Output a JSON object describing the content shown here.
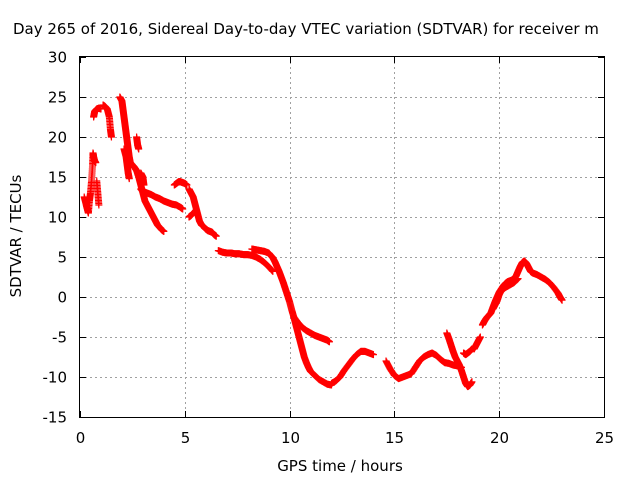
{
  "chart_data": {
    "type": "scatter",
    "title": "Day 265 of 2016, Sidereal Day-to-day VTEC variation (SDTVAR) for receiver m",
    "xlabel": "GPS time / hours",
    "ylabel": "SDTVAR / TECUs",
    "xlim": [
      0,
      25
    ],
    "ylim": [
      -15,
      30
    ],
    "xticks": [
      0,
      5,
      10,
      15,
      20,
      25
    ],
    "yticks": [
      -15,
      -10,
      -5,
      0,
      5,
      10,
      15,
      20,
      25,
      30
    ],
    "grid": true,
    "marker": "+",
    "color": "#ff0000",
    "series": [
      {
        "name": "SDTVAR",
        "segments": [
          [
            [
              0.2,
              12.5
            ],
            [
              0.3,
              11.5
            ],
            [
              0.35,
              11
            ],
            [
              0.4,
              10.5
            ],
            [
              0.45,
              12
            ],
            [
              0.5,
              13
            ],
            [
              0.55,
              14.5
            ],
            [
              0.6,
              16.5
            ],
            [
              0.62,
              18
            ],
            [
              0.65,
              17.5
            ],
            [
              0.7,
              17
            ],
            [
              0.75,
              16.8
            ]
          ],
          [
            [
              0.65,
              22.5
            ],
            [
              0.7,
              23.2
            ],
            [
              0.8,
              23.5
            ],
            [
              0.9,
              23.6
            ],
            [
              1.0,
              23.5
            ]
          ],
          [
            [
              0.8,
              14.5
            ],
            [
              0.85,
              13
            ],
            [
              0.9,
              11.5
            ]
          ],
          [
            [
              1.1,
              24
            ],
            [
              1.2,
              23.8
            ],
            [
              1.3,
              23.5
            ],
            [
              1.4,
              22.5
            ],
            [
              1.45,
              21
            ],
            [
              1.5,
              20
            ]
          ],
          [
            [
              1.9,
              25
            ],
            [
              2.0,
              24.5
            ],
            [
              2.05,
              23.5
            ],
            [
              2.1,
              22.5
            ],
            [
              2.15,
              21.5
            ],
            [
              2.2,
              20.5
            ],
            [
              2.25,
              19.5
            ],
            [
              2.3,
              18.5
            ],
            [
              2.35,
              17.5
            ],
            [
              2.4,
              16.8
            ],
            [
              2.5,
              16.5
            ],
            [
              2.6,
              16.2
            ],
            [
              2.7,
              15.8
            ],
            [
              2.8,
              15
            ],
            [
              2.9,
              14
            ],
            [
              3.0,
              13
            ],
            [
              3.1,
              12
            ],
            [
              3.2,
              11.5
            ],
            [
              3.3,
              11
            ],
            [
              3.4,
              10.5
            ],
            [
              3.5,
              10
            ],
            [
              3.6,
              9.5
            ],
            [
              3.7,
              9
            ],
            [
              3.8,
              8.7
            ],
            [
              3.9,
              8.4
            ],
            [
              4.0,
              8.2
            ]
          ],
          [
            [
              2.1,
              18.5
            ],
            [
              2.2,
              17.5
            ],
            [
              2.25,
              16.5
            ],
            [
              2.3,
              15.5
            ],
            [
              2.35,
              14.8
            ]
          ],
          [
            [
              2.7,
              20
            ],
            [
              2.75,
              19
            ],
            [
              2.8,
              18.5
            ]
          ],
          [
            [
              2.9,
              15.5
            ],
            [
              3.0,
              15
            ],
            [
              3.05,
              14
            ]
          ],
          [
            [
              2.9,
              13.5
            ],
            [
              3.0,
              13.2
            ],
            [
              3.2,
              13
            ],
            [
              3.4,
              12.8
            ],
            [
              3.6,
              12.5
            ],
            [
              3.8,
              12.3
            ],
            [
              4.0,
              12
            ],
            [
              4.2,
              11.8
            ],
            [
              4.4,
              11.6
            ],
            [
              4.6,
              11.5
            ],
            [
              4.8,
              11.2
            ],
            [
              4.9,
              11.0
            ]
          ],
          [
            [
              4.5,
              14
            ],
            [
              4.6,
              14.2
            ],
            [
              4.7,
              14.4
            ],
            [
              4.8,
              14.4
            ],
            [
              4.9,
              14.3
            ],
            [
              5.0,
              14.2
            ],
            [
              5.1,
              14
            ]
          ],
          [
            [
              5.2,
              13.5
            ],
            [
              5.3,
              13
            ],
            [
              5.4,
              12.5
            ],
            [
              5.5,
              11.5
            ],
            [
              5.6,
              10.5
            ],
            [
              5.7,
              9.5
            ],
            [
              5.8,
              9
            ],
            [
              5.9,
              8.8
            ],
            [
              6.0,
              8.5
            ],
            [
              6.1,
              8.3
            ],
            [
              6.2,
              8.2
            ],
            [
              6.3,
              8.1
            ],
            [
              6.4,
              7.8
            ],
            [
              6.5,
              7.6
            ]
          ],
          [
            [
              5.2,
              10
            ],
            [
              5.3,
              10.2
            ],
            [
              5.4,
              10.5
            ]
          ],
          [
            [
              6.6,
              5.8
            ],
            [
              6.8,
              5.6
            ],
            [
              7.0,
              5.5
            ],
            [
              7.2,
              5.5
            ],
            [
              7.4,
              5.4
            ],
            [
              7.6,
              5.4
            ],
            [
              7.8,
              5.3
            ],
            [
              8.0,
              5.3
            ],
            [
              8.2,
              5.2
            ],
            [
              8.4,
              5.0
            ],
            [
              8.6,
              4.7
            ],
            [
              8.8,
              4.3
            ],
            [
              9.0,
              3.8
            ],
            [
              9.2,
              3.2
            ]
          ],
          [
            [
              8.2,
              6
            ],
            [
              8.4,
              5.9
            ],
            [
              8.6,
              5.8
            ],
            [
              8.8,
              5.7
            ],
            [
              9.0,
              5.5
            ],
            [
              9.1,
              5.2
            ],
            [
              9.2,
              4.9
            ],
            [
              9.3,
              4.4
            ],
            [
              9.4,
              3.8
            ],
            [
              9.5,
              3.2
            ],
            [
              9.6,
              2.5
            ],
            [
              9.7,
              1.8
            ],
            [
              9.8,
              1.0
            ],
            [
              9.9,
              0.2
            ],
            [
              10.0,
              -0.6
            ],
            [
              10.1,
              -1.6
            ],
            [
              10.2,
              -2.5
            ],
            [
              10.3,
              -3.5
            ],
            [
              10.4,
              -4.5
            ],
            [
              10.5,
              -5.5
            ],
            [
              10.6,
              -6.5
            ],
            [
              10.7,
              -7.5
            ],
            [
              10.8,
              -8.2
            ],
            [
              10.9,
              -8.8
            ],
            [
              11.0,
              -9.3
            ],
            [
              11.2,
              -9.8
            ],
            [
              11.4,
              -10.3
            ],
            [
              11.6,
              -10.6
            ],
            [
              11.8,
              -10.9
            ],
            [
              12.0,
              -11.0
            ]
          ],
          [
            [
              10.2,
              -2.5
            ],
            [
              10.4,
              -3.2
            ],
            [
              10.6,
              -3.8
            ],
            [
              10.8,
              -4.2
            ],
            [
              11.0,
              -4.5
            ],
            [
              11.2,
              -4.8
            ],
            [
              11.4,
              -5.0
            ],
            [
              11.6,
              -5.2
            ],
            [
              11.8,
              -5.4
            ],
            [
              11.9,
              -5.6
            ]
          ],
          [
            [
              12.0,
              -10.8
            ],
            [
              12.2,
              -10.5
            ],
            [
              12.4,
              -10.0
            ],
            [
              12.6,
              -9.2
            ],
            [
              12.8,
              -8.5
            ],
            [
              13.0,
              -7.8
            ],
            [
              13.2,
              -7.2
            ],
            [
              13.4,
              -6.8
            ],
            [
              13.6,
              -6.8
            ],
            [
              13.8,
              -7.0
            ],
            [
              14.0,
              -7.2
            ]
          ],
          [
            [
              14.6,
              -8
            ],
            [
              14.8,
              -9
            ],
            [
              15.0,
              -9.8
            ],
            [
              15.2,
              -10.2
            ],
            [
              15.4,
              -10.0
            ],
            [
              15.6,
              -9.8
            ],
            [
              15.8,
              -9.6
            ],
            [
              16.0,
              -8.8
            ],
            [
              16.2,
              -8.0
            ],
            [
              16.4,
              -7.5
            ],
            [
              16.6,
              -7.2
            ],
            [
              16.8,
              -7.0
            ],
            [
              17.0,
              -7.3
            ],
            [
              17.2,
              -7.8
            ],
            [
              17.4,
              -8.2
            ],
            [
              17.6,
              -8.3
            ],
            [
              17.8,
              -8.5
            ],
            [
              18.0,
              -8.6
            ],
            [
              18.2,
              -8.8
            ]
          ],
          [
            [
              17.5,
              -4.5
            ],
            [
              17.6,
              -5.2
            ],
            [
              17.7,
              -6.0
            ],
            [
              17.8,
              -6.8
            ],
            [
              17.9,
              -7.5
            ],
            [
              18.0,
              -8.0
            ],
            [
              18.1,
              -8.5
            ],
            [
              18.2,
              -9.2
            ],
            [
              18.3,
              -10.0
            ],
            [
              18.4,
              -10.8
            ],
            [
              18.5,
              -11.2
            ],
            [
              18.6,
              -11.0
            ],
            [
              18.7,
              -10.6
            ]
          ],
          [
            [
              18.3,
              -7
            ],
            [
              18.4,
              -7.2
            ],
            [
              18.5,
              -7.0
            ],
            [
              18.6,
              -6.8
            ],
            [
              18.7,
              -6.5
            ]
          ],
          [
            [
              18.8,
              -6.5
            ],
            [
              18.9,
              -6.0
            ],
            [
              19.0,
              -5.5
            ],
            [
              19.1,
              -5.0
            ]
          ],
          [
            [
              19.2,
              -3.5
            ],
            [
              19.3,
              -3.0
            ],
            [
              19.4,
              -2.6
            ],
            [
              19.5,
              -2.3
            ],
            [
              19.6,
              -2.0
            ],
            [
              19.7,
              -1.3
            ],
            [
              19.8,
              -0.6
            ],
            [
              19.9,
              0.0
            ],
            [
              20.0,
              0.6
            ],
            [
              20.1,
              1.0
            ],
            [
              20.2,
              1.4
            ],
            [
              20.3,
              1.7
            ],
            [
              20.4,
              1.9
            ],
            [
              20.5,
              2.0
            ],
            [
              20.6,
              2.1
            ],
            [
              20.7,
              2.3
            ],
            [
              20.8,
              2.6
            ],
            [
              20.9,
              3.2
            ],
            [
              21.0,
              3.8
            ],
            [
              21.1,
              4.3
            ],
            [
              21.2,
              4.5
            ],
            [
              21.3,
              4.2
            ],
            [
              21.4,
              3.7
            ],
            [
              21.5,
              3.2
            ],
            [
              21.6,
              3.0
            ],
            [
              21.8,
              2.8
            ],
            [
              22.0,
              2.5
            ],
            [
              22.2,
              2.2
            ],
            [
              22.4,
              1.8
            ],
            [
              22.6,
              1.2
            ],
            [
              22.8,
              0.5
            ],
            [
              22.9,
              0.0
            ],
            [
              23.0,
              -0.4
            ]
          ],
          [
            [
              19.7,
              -1.5
            ],
            [
              19.8,
              -1.0
            ],
            [
              19.9,
              -0.5
            ],
            [
              20.0,
              0.3
            ],
            [
              20.1,
              0.8
            ],
            [
              20.3,
              1.2
            ],
            [
              20.5,
              1.5
            ],
            [
              20.7,
              1.8
            ],
            [
              20.9,
              2.3
            ]
          ]
        ]
      }
    ]
  }
}
